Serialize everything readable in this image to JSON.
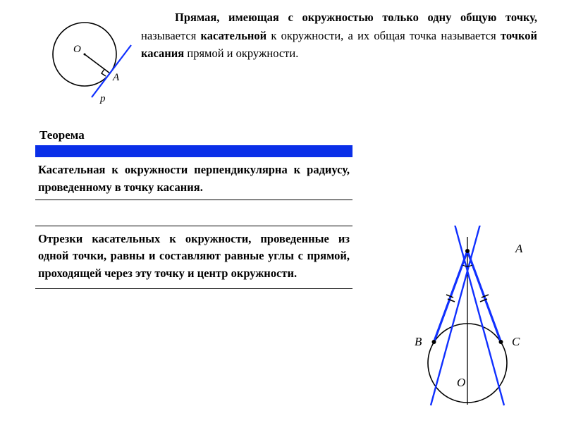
{
  "definition": {
    "text_html": "<span class=\"lead-indent\"></span><span class=\"bold\">Прямая, имеющая с окружностью только одну общую точку,</span> называется <span class=\"bold\">ка­сательной</span> к окружности, а их общая точка называется <span class=\"bold\">точкой касания</span> прямой и ок­ружности."
  },
  "theorem": {
    "title": "Теорема",
    "body": "Касательная к окружности перпендику­лярна к радиусу, проведенному в точку ка­сания.",
    "bar_color": "#0a2fe8"
  },
  "property": {
    "body": "Отрезки касательных к окружности, прове­денные из одной точки, равны и составля­ют равные углы с прямой, проходящей че­рез эту точку и центр окружности."
  },
  "figure1": {
    "label_O": "O",
    "label_A": "A",
    "label_p": "p",
    "circle_stroke": "#000000",
    "tangent_color": "#1030ff",
    "radius_color": "#000000"
  },
  "figure2": {
    "label_A": "A",
    "label_B": "B",
    "label_C": "C",
    "label_O": "O",
    "circle_stroke": "#000000",
    "tangent_color": "#1030ff",
    "axis_color": "#000000"
  },
  "style": {
    "body_fontsize": 16.5,
    "title_fontsize": 17,
    "text_color": "#000000",
    "background": "#ffffff"
  }
}
